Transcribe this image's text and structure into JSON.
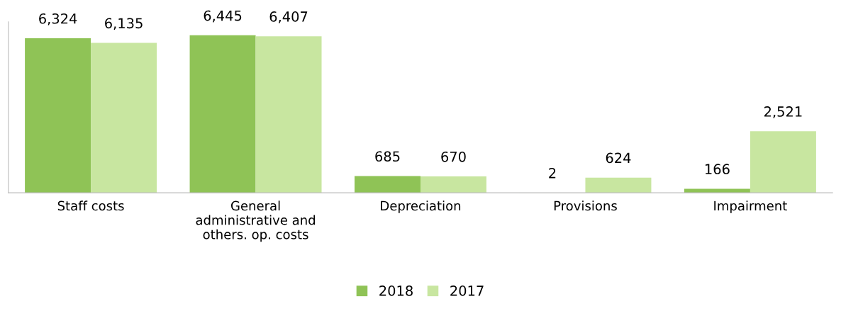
{
  "chart_data": {
    "type": "bar",
    "categories": [
      "Staff costs",
      "General\nadministrative and\nothers. op. costs",
      "Depreciation",
      "Provisions",
      "Impairment"
    ],
    "series": [
      {
        "name": "2018",
        "color": "#8fc356",
        "values": [
          6324,
          6445,
          685,
          2,
          166
        ],
        "value_labels": [
          "6,324",
          "6,445",
          "685",
          "2",
          "166"
        ]
      },
      {
        "name": "2017",
        "color": "#c8e6a0",
        "values": [
          6135,
          6407,
          670,
          624,
          2521
        ],
        "value_labels": [
          "6,135",
          "6,407",
          "670",
          "624",
          "2,521"
        ]
      }
    ],
    "ylim": [
      0,
      7000
    ],
    "tick_labels": "x",
    "grid": false,
    "legend": "bottom"
  }
}
